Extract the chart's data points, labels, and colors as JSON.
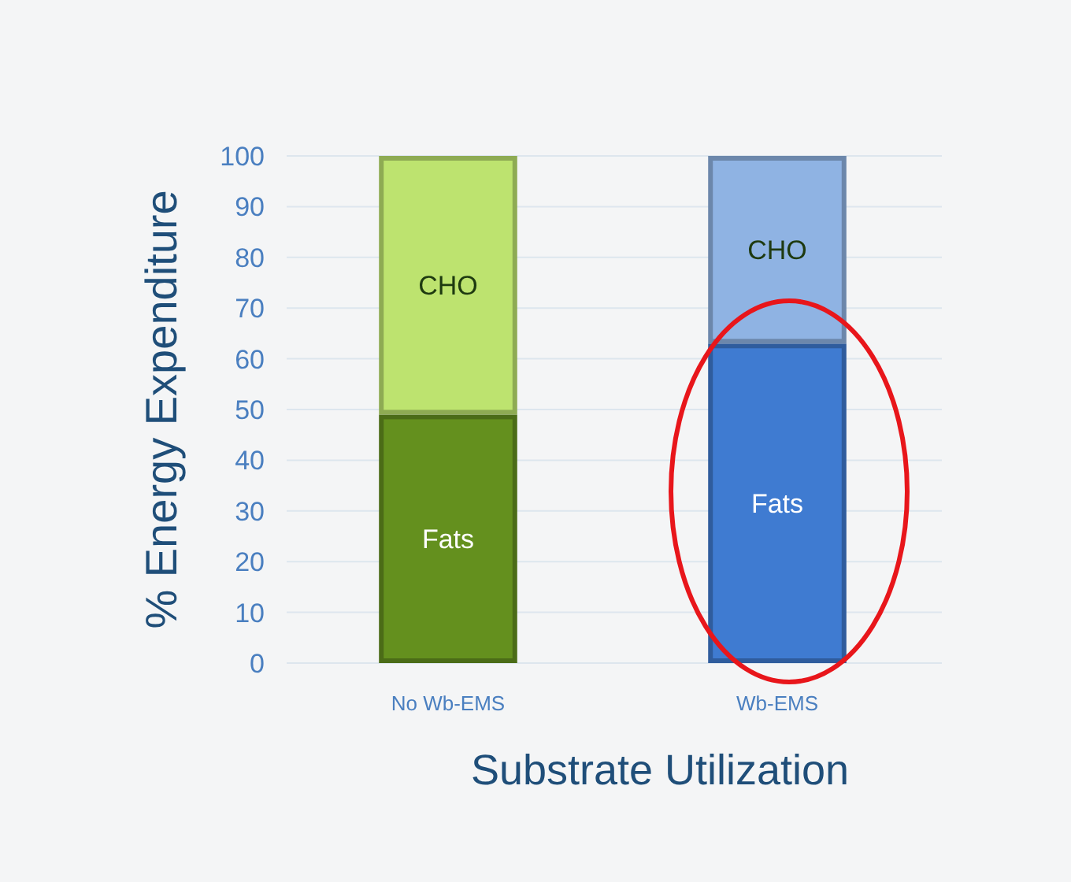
{
  "chart_data": {
    "type": "bar",
    "stacked": true,
    "xlabel": "Substrate Utilization",
    "ylabel": "% Energy Expenditure",
    "categories": [
      "No Wb-EMS",
      "Wb-EMS"
    ],
    "ylim": [
      0,
      100
    ],
    "yticks": [
      0,
      10,
      20,
      30,
      40,
      50,
      60,
      70,
      80,
      90,
      100
    ],
    "grid": "y",
    "series": [
      {
        "name": "Fats",
        "colors": [
          "#64901e",
          "#3f7bd1"
        ],
        "values": [
          49,
          63
        ]
      },
      {
        "name": "CHO",
        "colors": [
          "#bde36f",
          "#8fb3e3"
        ],
        "values": [
          51,
          37
        ]
      }
    ]
  }
}
